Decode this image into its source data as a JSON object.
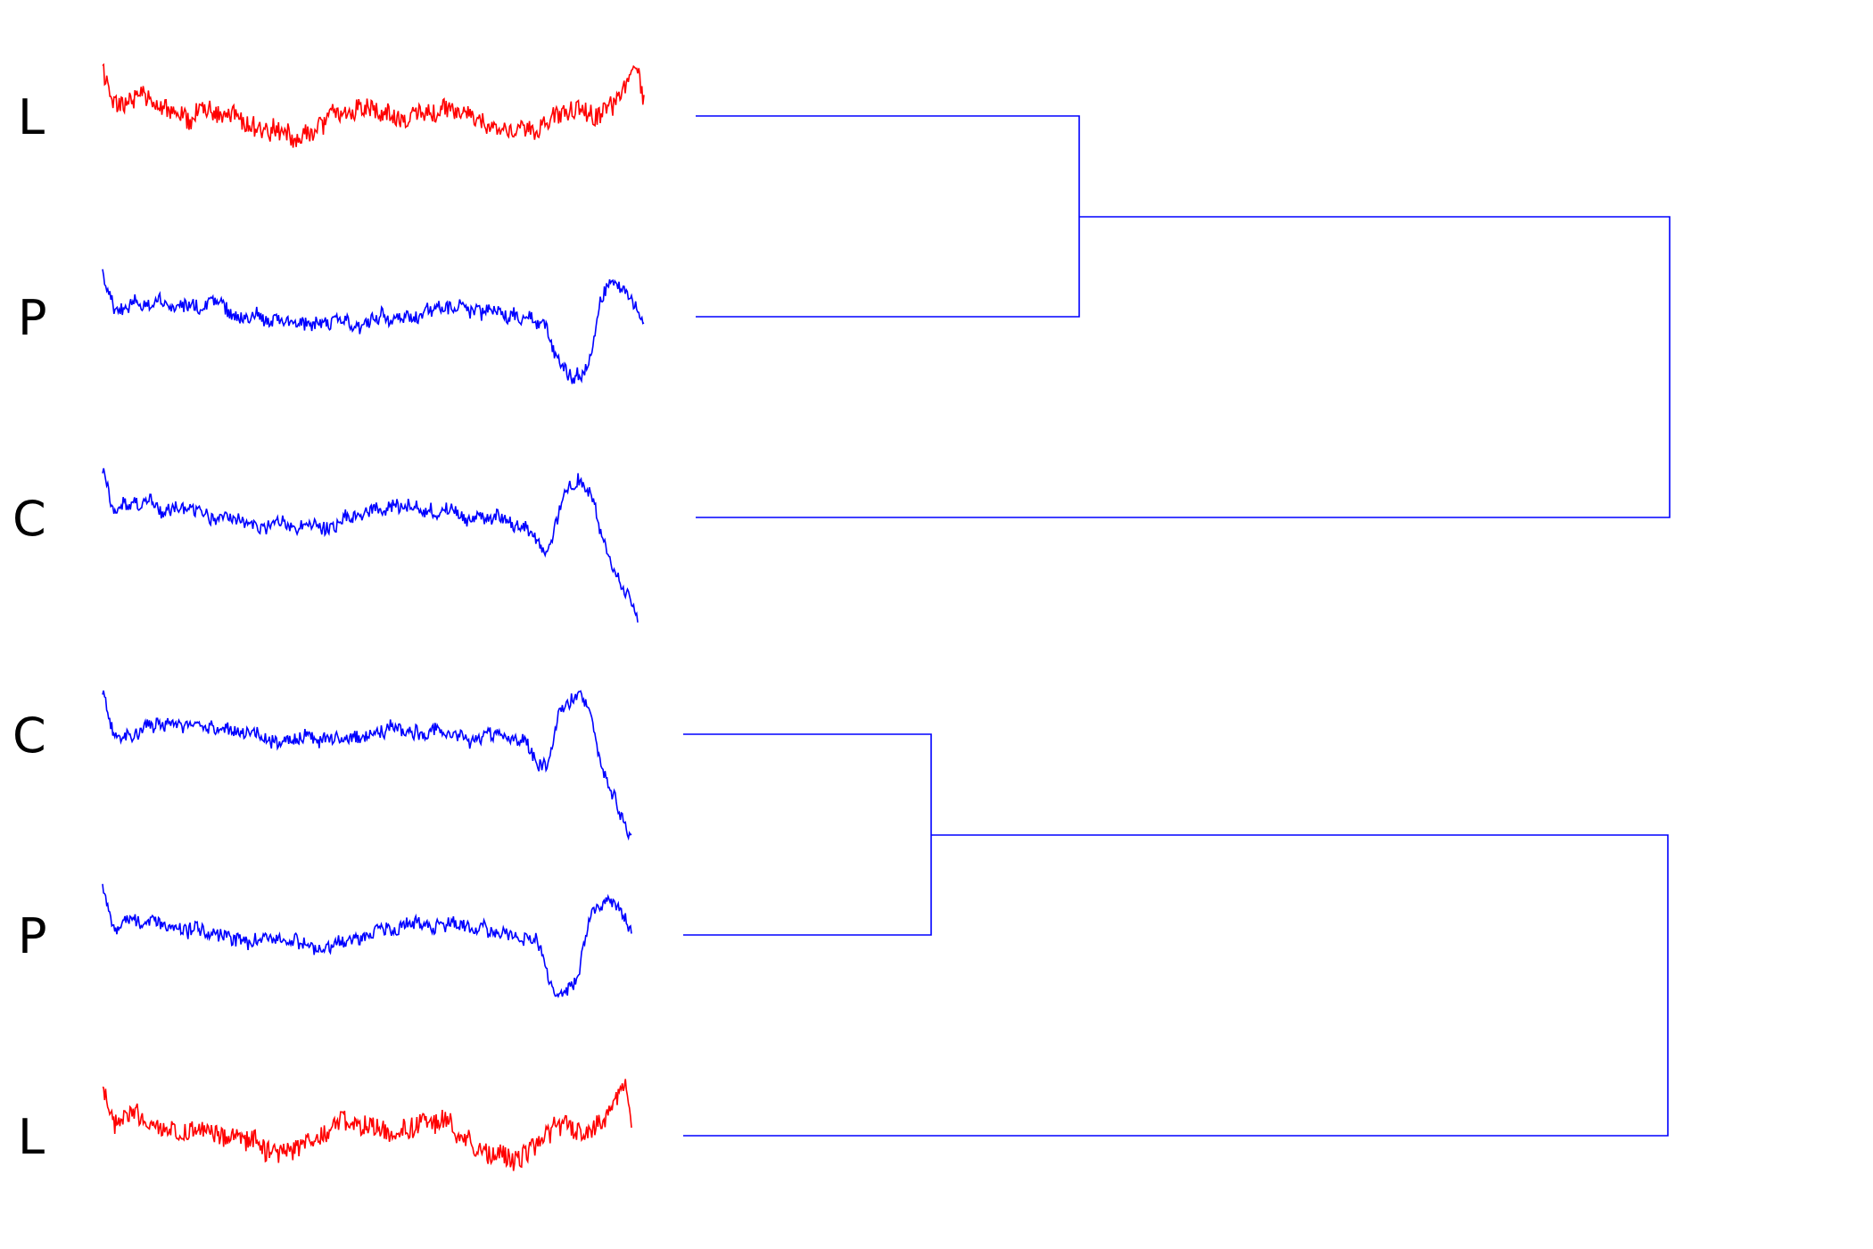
{
  "colors": {
    "red_series": "#ff0000",
    "blue_series": "#0000ff",
    "dendrogram": "#0000ff",
    "label": "#000000"
  },
  "groups": [
    {
      "name": "top",
      "rows": [
        {
          "label": "L",
          "color": "red",
          "seed": 11
        },
        {
          "label": "P",
          "color": "blue",
          "seed": 23
        },
        {
          "label": "C",
          "color": "blue",
          "seed": 37
        }
      ],
      "merges": [
        {
          "leaves": [
            0,
            1
          ],
          "height": 0.39
        },
        {
          "leaves": [
            "m0",
            2
          ],
          "height": 1.0
        }
      ]
    },
    {
      "name": "bottom",
      "rows": [
        {
          "label": "C",
          "color": "blue",
          "seed": 41
        },
        {
          "label": "P",
          "color": "blue",
          "seed": 53
        },
        {
          "label": "L",
          "color": "red",
          "seed": 67
        }
      ],
      "merges": [
        {
          "leaves": [
            0,
            1
          ],
          "height": 0.25
        },
        {
          "leaves": [
            "m0",
            2
          ],
          "height": 1.0
        }
      ]
    }
  ]
}
